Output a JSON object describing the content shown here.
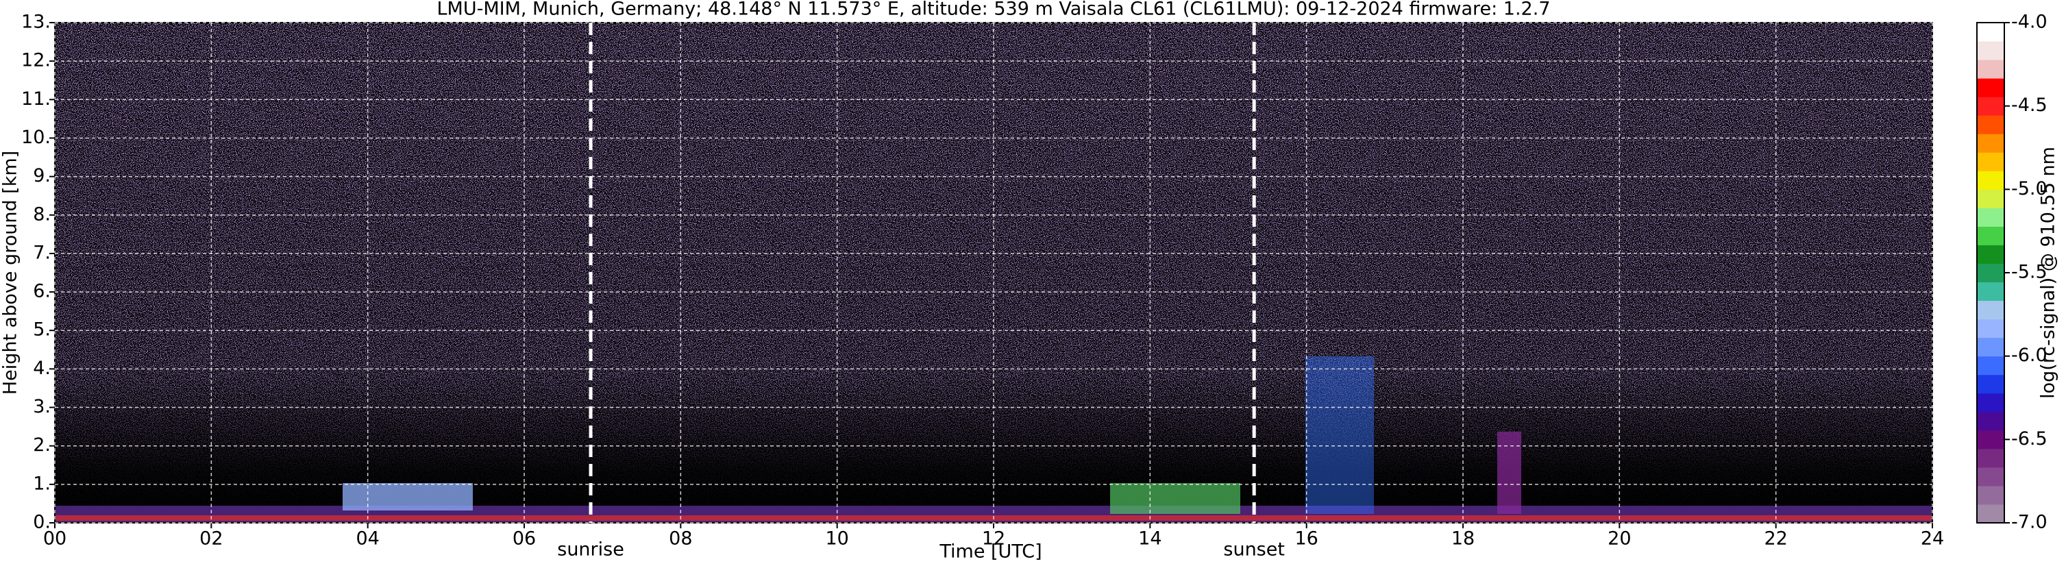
{
  "chart_data": {
    "type": "heatmap",
    "title": "LMU-MIM, Munich, Germany; 48.148° N 11.573° E, altitude: 539 m    Vaisala CL61 (CL61LMU): 09-12-2024    firmware: 1.2.7",
    "xlabel": "Time [UTC]",
    "ylabel": "Height above ground [km]",
    "xlim": [
      0,
      24
    ],
    "xticks": [
      {
        "value": 0,
        "label": "00"
      },
      {
        "value": 2,
        "label": "02"
      },
      {
        "value": 4,
        "label": "04"
      },
      {
        "value": 6,
        "label": "06"
      },
      {
        "value": 8,
        "label": "08"
      },
      10,
      12,
      14,
      16,
      18,
      20,
      22,
      24
    ],
    "ylim": [
      0,
      13
    ],
    "yticks": [
      {
        "value": 0,
        "label": "0."
      },
      {
        "value": 1,
        "label": "1."
      },
      {
        "value": 2,
        "label": "2."
      },
      {
        "value": 3,
        "label": "3."
      },
      {
        "value": 4,
        "label": "4."
      },
      {
        "value": 5,
        "label": "5."
      },
      {
        "value": 6,
        "label": "6."
      },
      {
        "value": 7,
        "label": "7."
      },
      {
        "value": 8,
        "label": "8."
      },
      {
        "value": 9,
        "label": "9."
      },
      {
        "value": 10,
        "label": "10."
      },
      {
        "value": 11,
        "label": "11."
      },
      {
        "value": 12,
        "label": "12."
      },
      {
        "value": 13,
        "label": "13."
      }
    ],
    "grid": true,
    "colorbar_label": "log(rc-signal) @ 910.55 nm",
    "clim": [
      -7,
      -4
    ],
    "cticks": [
      {
        "value": -7,
        "label": "-7.0"
      },
      {
        "value": -6.5,
        "label": "-6.5"
      },
      {
        "value": -6,
        "label": "-6.0"
      },
      {
        "value": -5.5,
        "label": "-5.5"
      },
      {
        "value": -5,
        "label": "-5.0"
      },
      {
        "value": -4.5,
        "label": "-4.5"
      },
      {
        "value": -4,
        "label": "-4.0"
      }
    ],
    "colormap": [
      "#a08aa8",
      "#946c9c",
      "#86488e",
      "#782a82",
      "#6a0a7a",
      "#4a0a96",
      "#2a14c4",
      "#1e3ae8",
      "#3c6cff",
      "#6c96ff",
      "#98b4ff",
      "#a6c6ee",
      "#3cbca0",
      "#1e9e5a",
      "#14901e",
      "#46d046",
      "#8ef08c",
      "#d4f040",
      "#f4f000",
      "#ffc000",
      "#ff9000",
      "#ff5000",
      "#ff2020",
      "#ff0000",
      "#f0c0c0",
      "#f4e4e4",
      "#ffffff"
    ],
    "annotations": [
      {
        "label": "sunrise",
        "x": 6.85
      },
      {
        "label": "sunset",
        "x": 15.33
      }
    ]
  }
}
